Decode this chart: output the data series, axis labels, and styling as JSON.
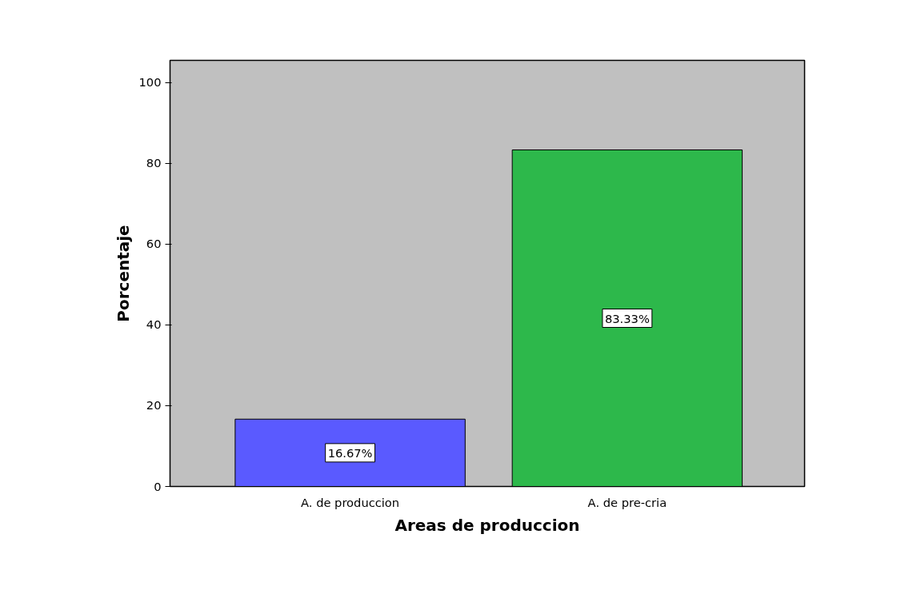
{
  "chart_data": {
    "type": "bar",
    "xlabel": "Areas de produccion",
    "ylabel": "Porcentaje",
    "categories": [
      "A. de produccion",
      "A. de pre-cria"
    ],
    "values": [
      16.67,
      83.33
    ],
    "colors": [
      "#5a5aff",
      "#2db84b"
    ],
    "value_labels": [
      "16.67%",
      "83.33%"
    ],
    "ylim": [
      0,
      105.5
    ],
    "yticks": [
      0,
      20,
      40,
      60,
      80,
      100
    ],
    "grid": false
  }
}
